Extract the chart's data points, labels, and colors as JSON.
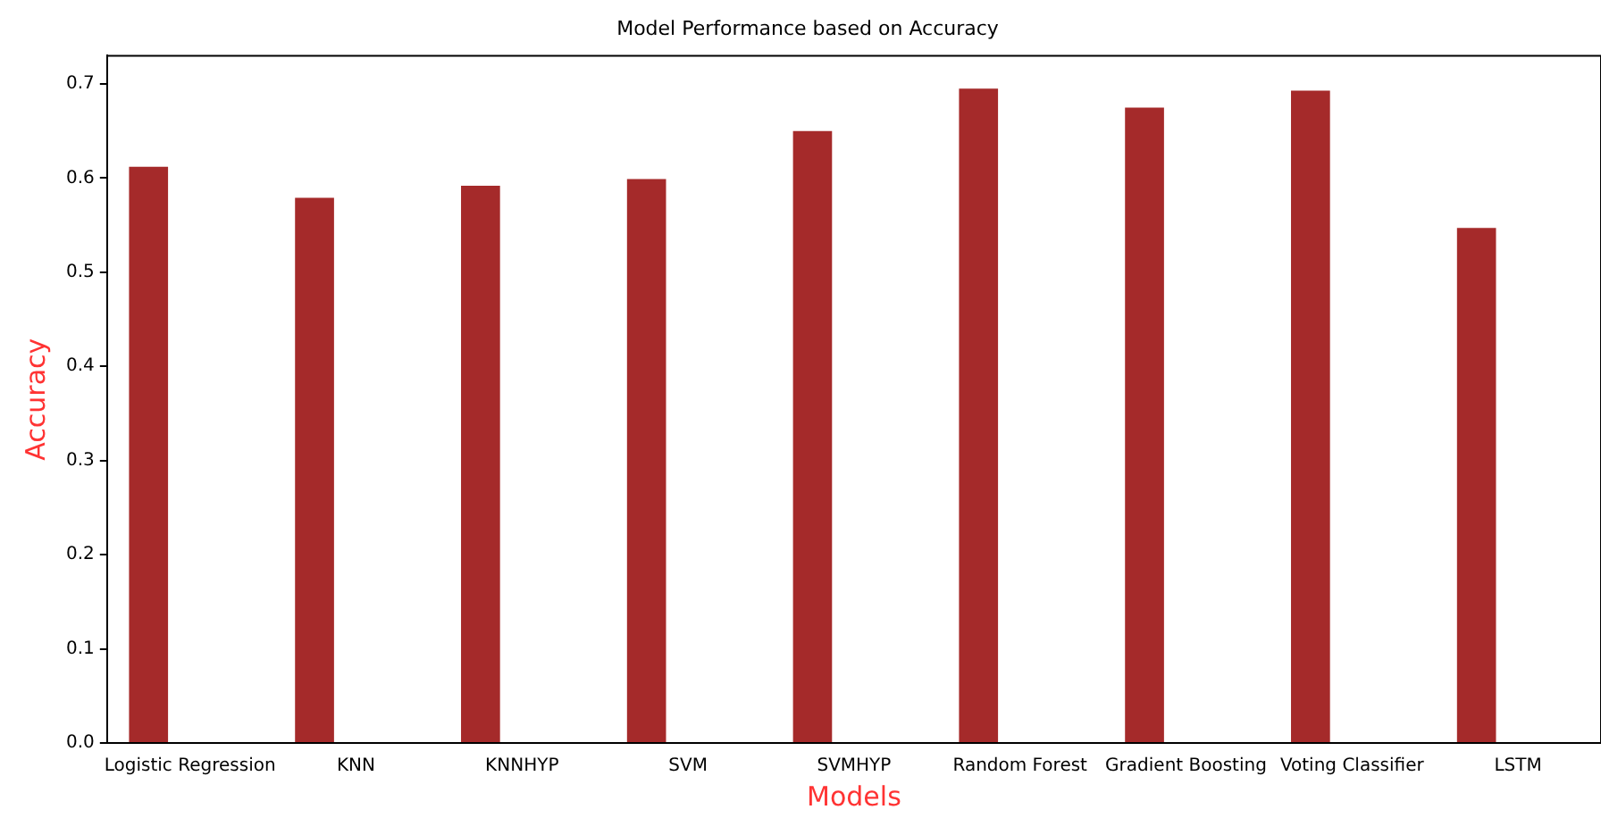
{
  "chart_data": {
    "type": "bar",
    "title": "Model Performance based on Accuracy",
    "xlabel": "Models",
    "ylabel": "Accuracy",
    "categories": [
      "Logistic Regression",
      "KNN",
      "KNNHYP",
      "SVM",
      "SVMHYP",
      "Random Forest",
      "Gradient Boosting",
      "Voting Classifier",
      "LSTM"
    ],
    "values": [
      0.612,
      0.579,
      0.592,
      0.599,
      0.65,
      0.695,
      0.675,
      0.693,
      0.547
    ],
    "color": "#a52a2a",
    "ylim": [
      0,
      0.73
    ],
    "yticks": [
      {
        "value": 0,
        "label": "0.0"
      },
      {
        "value": 0.1,
        "label": "0.1"
      },
      {
        "value": 0.2,
        "label": "0.2"
      },
      {
        "value": 0.3,
        "label": "0.3"
      },
      {
        "value": 0.4,
        "label": "0.4"
      },
      {
        "value": 0.5,
        "label": "0.5"
      },
      {
        "value": 0.6,
        "label": "0.6"
      },
      {
        "value": 0.7,
        "label": "0.7"
      }
    ],
    "grid": false,
    "legend": false
  }
}
